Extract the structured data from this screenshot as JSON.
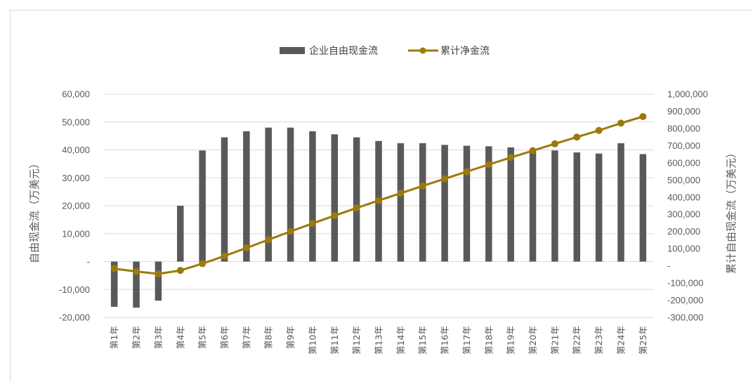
{
  "chart_data": {
    "type": "bar",
    "title": "",
    "categories": [
      "第1年",
      "第2年",
      "第3年",
      "第4年",
      "第5年",
      "第6年",
      "第7年",
      "第8年",
      "第9年",
      "第10年",
      "第11年",
      "第12年",
      "第13年",
      "第14年",
      "第15年",
      "第16年",
      "第17年",
      "第18年",
      "第19年",
      "第20年",
      "第21年",
      "第22年",
      "第23年",
      "第24年",
      "第25年"
    ],
    "series": [
      {
        "name": "企业自由现金流",
        "type": "bar",
        "axis": "left",
        "color": "#595959",
        "values": [
          -16200,
          -16500,
          -14000,
          20000,
          39800,
          44500,
          46700,
          48000,
          48000,
          46700,
          45600,
          44500,
          43200,
          42400,
          42400,
          41800,
          41500,
          41300,
          40900,
          40200,
          39800,
          39100,
          38700,
          42400,
          38500
        ]
      },
      {
        "name": "累计净金流",
        "type": "line",
        "axis": "right",
        "color": "#9a7a0a",
        "values": [
          -16200,
          -32700,
          -46700,
          -26700,
          13100,
          57600,
          104300,
          152300,
          200300,
          247000,
          292600,
          337100,
          380300,
          422700,
          465100,
          506900,
          548400,
          589700,
          630600,
          670800,
          710600,
          749700,
          788400,
          830800,
          869300
        ]
      }
    ],
    "y_left": {
      "label": "自由现金流（万美元）",
      "ylim": [
        -20000,
        60000
      ],
      "ticks": [
        -20000,
        -10000,
        0,
        10000,
        20000,
        30000,
        40000,
        50000,
        60000
      ],
      "tick_labels": [
        "-20,000",
        "-10,000",
        "-",
        "10,000",
        "20,000",
        "30,000",
        "40,000",
        "50,000",
        "60,000"
      ]
    },
    "y_right": {
      "label": "累计自由现金流（万美元）",
      "ylim": [
        -300000,
        1000000
      ],
      "ticks": [
        -300000,
        -200000,
        -100000,
        0,
        100000,
        200000,
        300000,
        400000,
        500000,
        600000,
        700000,
        800000,
        900000,
        1000000
      ],
      "tick_labels": [
        "-300,000",
        "-200,000",
        "-100,000",
        "-",
        "100,000",
        "200,000",
        "300,000",
        "400,000",
        "500,000",
        "600,000",
        "700,000",
        "800,000",
        "900,000",
        "1,000,000"
      ]
    },
    "grid": true,
    "legend": "top-center"
  }
}
